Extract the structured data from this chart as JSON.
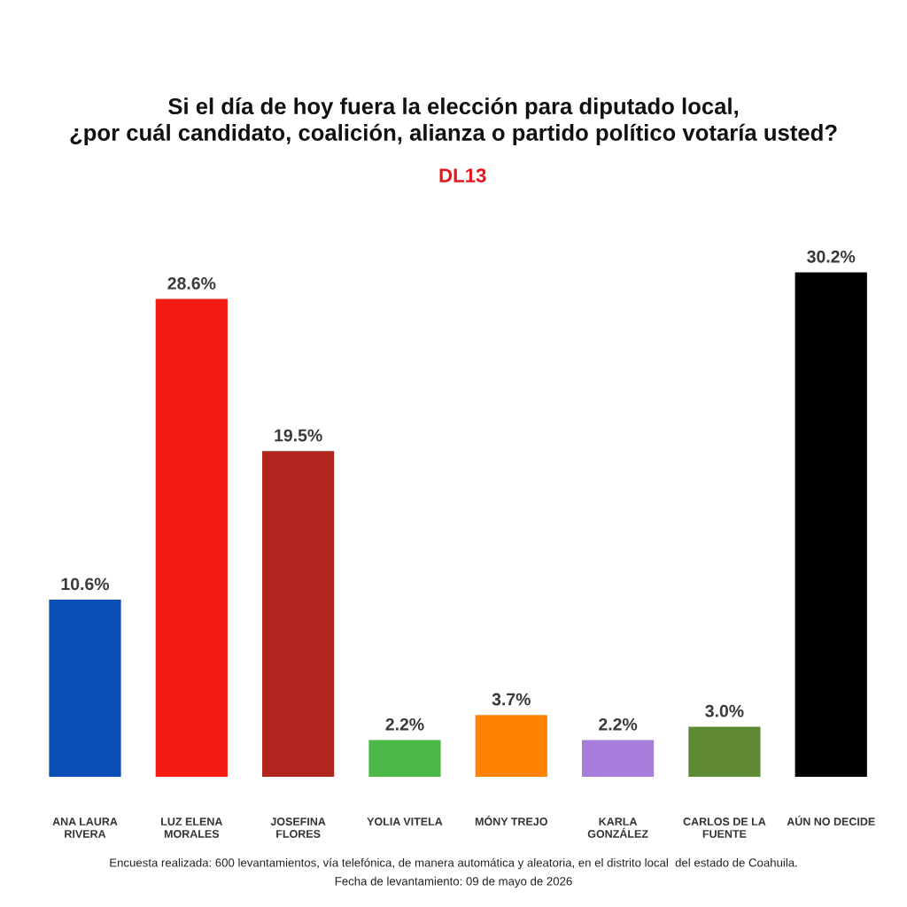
{
  "chart_data": {
    "type": "bar",
    "title": "Si el día de hoy fuera la elección para diputado local,\n¿por cuál candidato, coalición, alianza o partido político votaría usted?",
    "subtitle": "DL13",
    "categories": [
      "ANA LAURA\nRIVERA",
      "LUZ ELENA\nMORALES",
      "JOSEFINA\nFLORES",
      "YOLIA VITELA",
      "MÓNY TREJO",
      "KARLA\nGONZÁLEZ",
      "CARLOS DE LA\nFUENTE",
      "AÚN NO DECIDE"
    ],
    "values": [
      10.6,
      28.6,
      19.5,
      2.2,
      3.7,
      2.2,
      3.0,
      30.2
    ],
    "colors": [
      "#0a4fb5",
      "#f21a11",
      "#b0261f",
      "#4cb848",
      "#ff8300",
      "#a97ddc",
      "#5e8a34",
      "#000000"
    ],
    "value_labels": [
      "10.6%",
      "28.6%",
      "19.5%",
      "2.2%",
      "3.7%",
      "2.2%",
      "3.0%",
      "30.2%"
    ],
    "tick_labels": "x",
    "grid": false,
    "legend": false,
    "annotations": [
      "Encuesta realizada: 600 levantamientos, vía telefónica, de manera automática y aleatoria, en el distrito local  del estado de Coahuila.",
      "Fecha de levantamiento: 09 de mayo de 2026"
    ]
  }
}
